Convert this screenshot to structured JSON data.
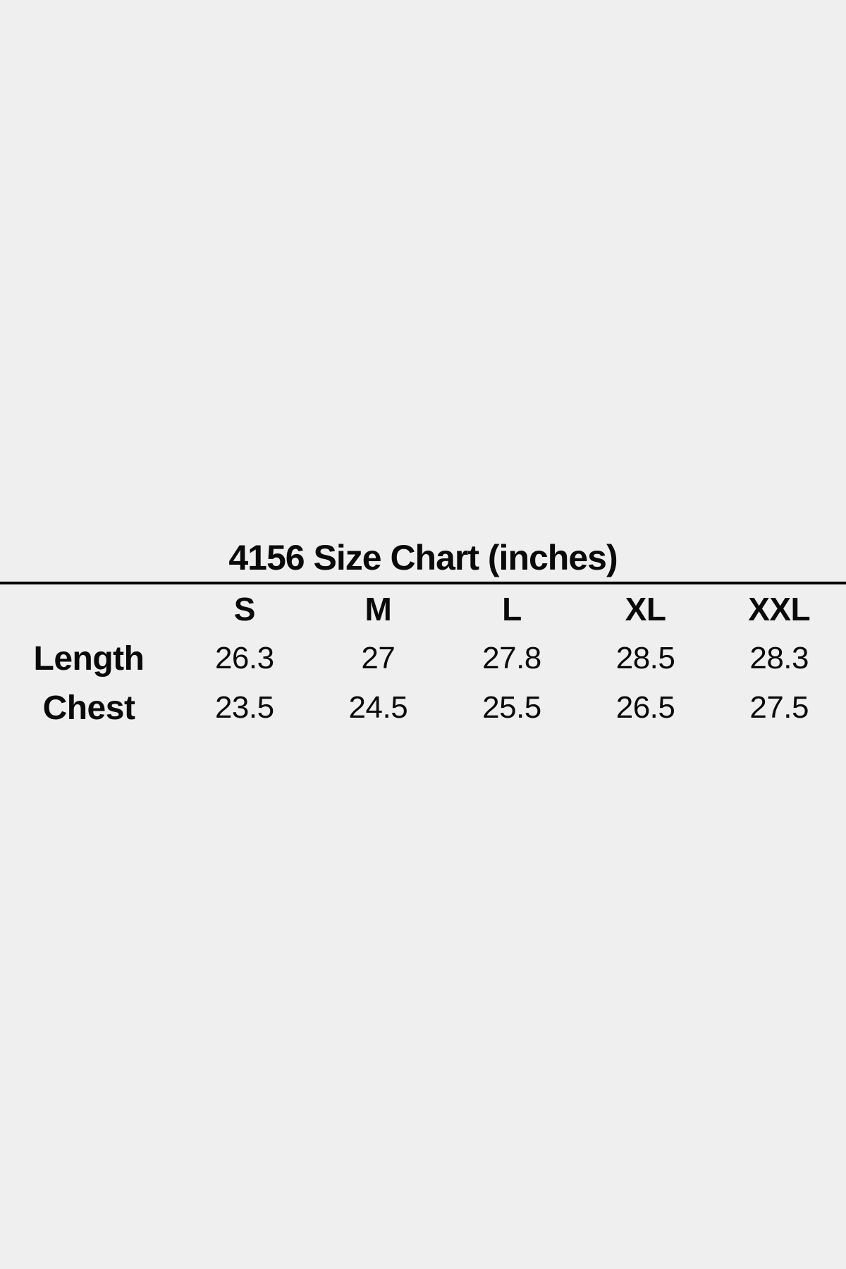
{
  "page": {
    "background_color": "#efefef",
    "text_color": "#0a0a0a",
    "divider_color": "#000000"
  },
  "size_chart": {
    "title": "4156 Size Chart (inches)",
    "columns": [
      "S",
      "M",
      "L",
      "XL",
      "XXL"
    ],
    "rows": [
      {
        "label": "Length",
        "values": [
          "26.3",
          "27",
          "27.8",
          "28.5",
          "28.3"
        ]
      },
      {
        "label": "Chest",
        "values": [
          "23.5",
          "24.5",
          "25.5",
          "26.5",
          "27.5"
        ]
      }
    ]
  },
  "chart_data": {
    "type": "table",
    "title": "4156 Size Chart (inches)",
    "units": "inches",
    "columns": [
      "",
      "S",
      "M",
      "L",
      "XL",
      "XXL"
    ],
    "rows": [
      [
        "Length",
        26.3,
        27,
        27.8,
        28.5,
        28.3
      ],
      [
        "Chest",
        23.5,
        24.5,
        25.5,
        26.5,
        27.5
      ]
    ]
  }
}
